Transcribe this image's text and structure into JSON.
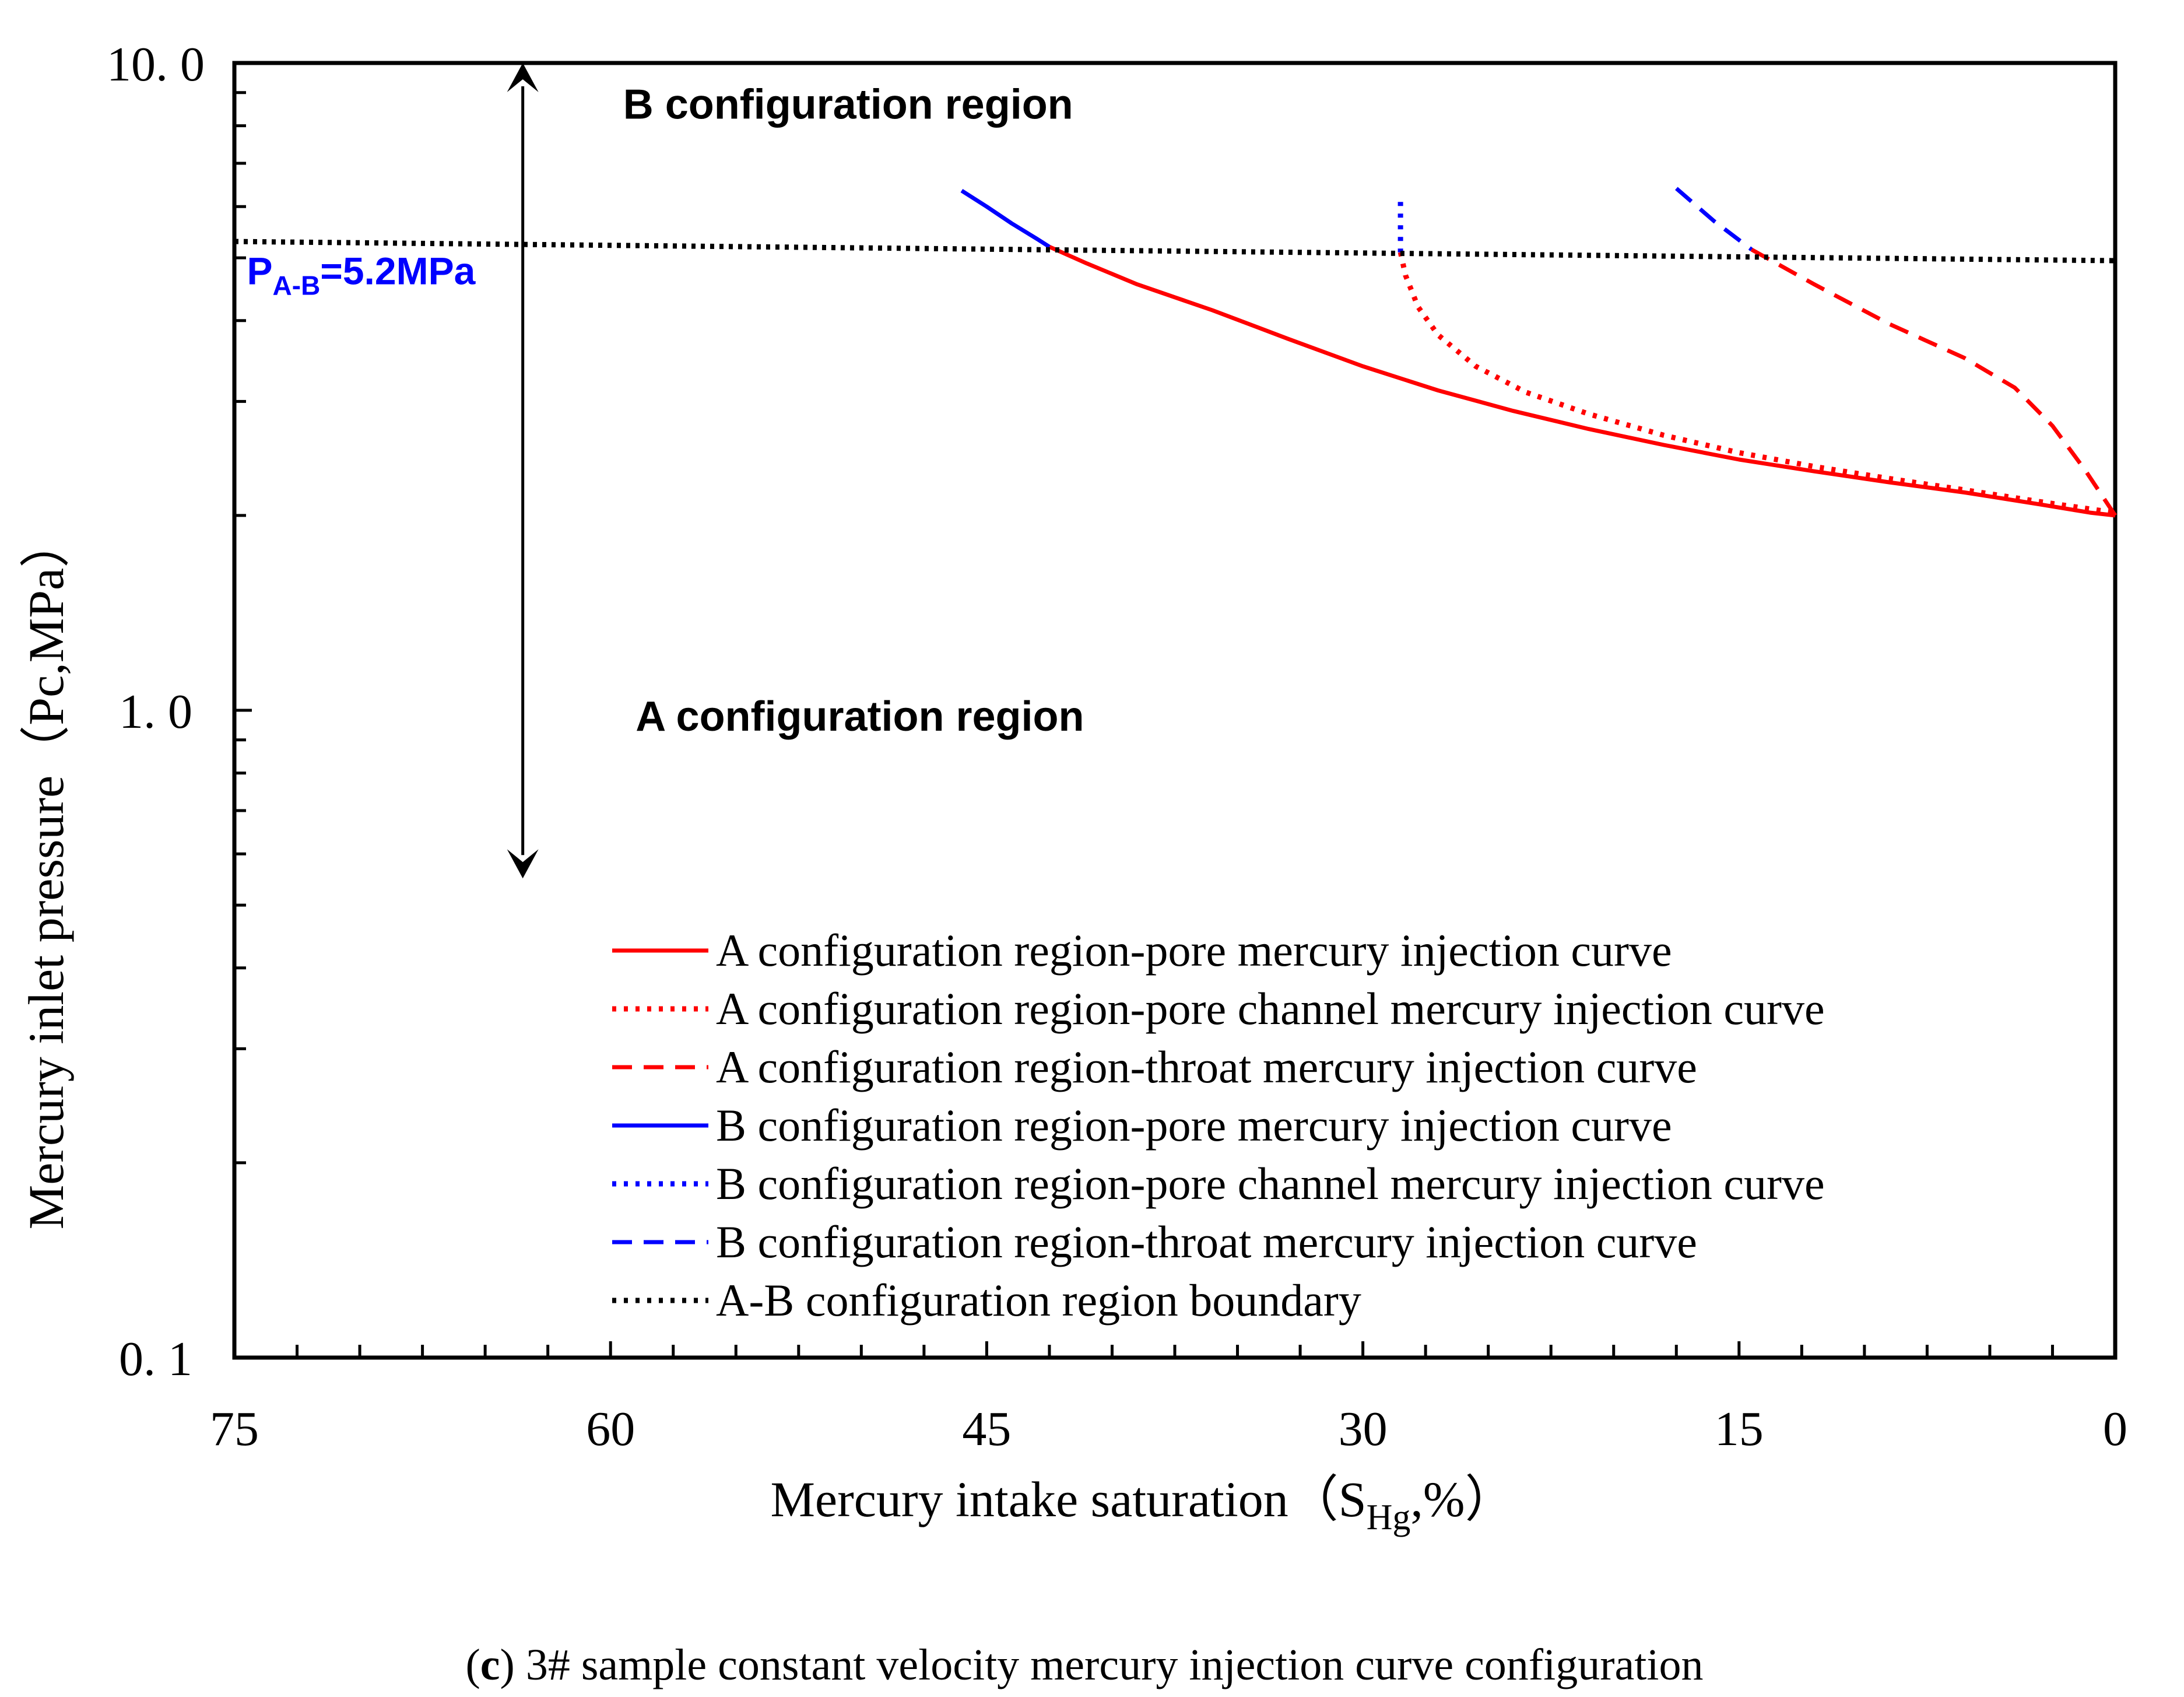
{
  "chart_data": {
    "type": "line",
    "caption": {
      "label": "c",
      "text": "3# sample constant velocity mercury injection curve configuration"
    },
    "xlabel": "Mercury intake saturation（S",
    "xlabel_sub": "Hg",
    "xlabel_end": ",%）",
    "ylabel": "Mercury inlet pressure（Pc,MPa）",
    "x_reversed": true,
    "xlim": [
      75,
      0
    ],
    "ylim": [
      0.1,
      10.0
    ],
    "yscale": "log",
    "x_ticks": [
      "75",
      "60",
      "45",
      "30",
      "15",
      "0"
    ],
    "x_tick_values": [
      75,
      60,
      45,
      30,
      15,
      0
    ],
    "y_ticks": [
      "0. 1",
      "1. 0",
      "10. 0"
    ],
    "y_tick_values": [
      0.1,
      1.0,
      10.0
    ],
    "annotations": {
      "b_region": "B configuration region",
      "a_region": "A configuration region",
      "boundary_label_main": "P",
      "boundary_label_sub": "A-B",
      "boundary_label_rest": "=5.2MPa",
      "arrow_x": 63.5,
      "arrow_top": 10.0,
      "arrow_bottom": 0.55,
      "b_label_pos": [
        59.5,
        8.2
      ],
      "a_label_pos": [
        59.0,
        0.93
      ],
      "boundary_label_pos": [
        74.5,
        4.55
      ]
    },
    "series": [
      {
        "name": "A configuration region-pore mercury injection curve",
        "color": "#ff0000",
        "dash": "solid",
        "x": [
          42.5,
          41,
          39,
          36,
          33,
          30,
          27,
          24,
          21,
          18,
          15,
          12,
          9,
          6,
          3,
          1,
          0
        ],
        "y": [
          5.2,
          4.9,
          4.55,
          4.15,
          3.75,
          3.4,
          3.12,
          2.9,
          2.72,
          2.57,
          2.44,
          2.34,
          2.25,
          2.17,
          2.08,
          2.02,
          2.0
        ]
      },
      {
        "name": "A configuration region-pore channel mercury injection curve",
        "color": "#ff0000",
        "dash": "dotted",
        "x": [
          28.5,
          28.3,
          27.8,
          27.0,
          25.5,
          23.5,
          21,
          18,
          15,
          12,
          9,
          6,
          3,
          0
        ],
        "y": [
          5.1,
          4.7,
          4.2,
          3.8,
          3.4,
          3.1,
          2.87,
          2.66,
          2.5,
          2.38,
          2.28,
          2.19,
          2.1,
          2.02
        ]
      },
      {
        "name": "A configuration region-throat mercury injection curve",
        "color": "#ff0000",
        "dash": "dashed",
        "x": [
          14.5,
          12,
          9,
          6,
          4,
          2.5,
          1.2,
          0
        ],
        "y": [
          5.15,
          4.55,
          3.95,
          3.5,
          3.15,
          2.75,
          2.35,
          2.0
        ]
      },
      {
        "name": "B configuration region-pore mercury injection curve",
        "color": "#0000ff",
        "dash": "solid",
        "x": [
          46,
          45,
          44,
          43,
          42.5
        ],
        "y": [
          6.35,
          6.0,
          5.65,
          5.35,
          5.2
        ]
      },
      {
        "name": "B configuration region-pore channel mercury injection curve",
        "color": "#0000ff",
        "dash": "dotted",
        "x": [
          28.5,
          28.5,
          28.5
        ],
        "y": [
          6.1,
          5.6,
          5.1
        ]
      },
      {
        "name": "B configuration region-throat mercury injection curve",
        "color": "#0000ff",
        "dash": "dashed",
        "x": [
          17.5,
          16,
          14.5
        ],
        "y": [
          6.4,
          5.7,
          5.15
        ]
      },
      {
        "name": "A-B configuration region boundary",
        "color": "#000000",
        "dash": "dotted",
        "x": [
          75,
          0
        ],
        "y": [
          5.3,
          4.95
        ]
      }
    ]
  }
}
